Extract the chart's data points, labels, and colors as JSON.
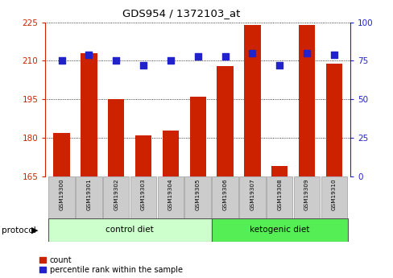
{
  "title": "GDS954 / 1372103_at",
  "samples": [
    "GSM19300",
    "GSM19301",
    "GSM19302",
    "GSM19303",
    "GSM19304",
    "GSM19305",
    "GSM19306",
    "GSM19307",
    "GSM19308",
    "GSM19309",
    "GSM19310"
  ],
  "counts": [
    182,
    213,
    195,
    181,
    183,
    196,
    208,
    224,
    169,
    224,
    209
  ],
  "percentiles": [
    75,
    79,
    75,
    72,
    75,
    78,
    78,
    80,
    72,
    80,
    79
  ],
  "n_control": 6,
  "bar_color": "#cc2200",
  "dot_color": "#2222cc",
  "left_ylim": [
    165,
    225
  ],
  "left_yticks": [
    165,
    180,
    195,
    210,
    225
  ],
  "right_ylim": [
    0,
    100
  ],
  "right_yticks": [
    0,
    25,
    50,
    75,
    100
  ],
  "left_tick_color": "#cc2200",
  "right_tick_color": "#2222cc",
  "control_color": "#ccffcc",
  "ketogenic_color": "#55ee55",
  "label_bg_color": "#cccccc",
  "label_edge_color": "#999999",
  "protocol_label": "protocol",
  "legend_count": "count",
  "legend_percentile": "percentile rank within the sample",
  "bar_width": 0.6,
  "dot_size": 30
}
